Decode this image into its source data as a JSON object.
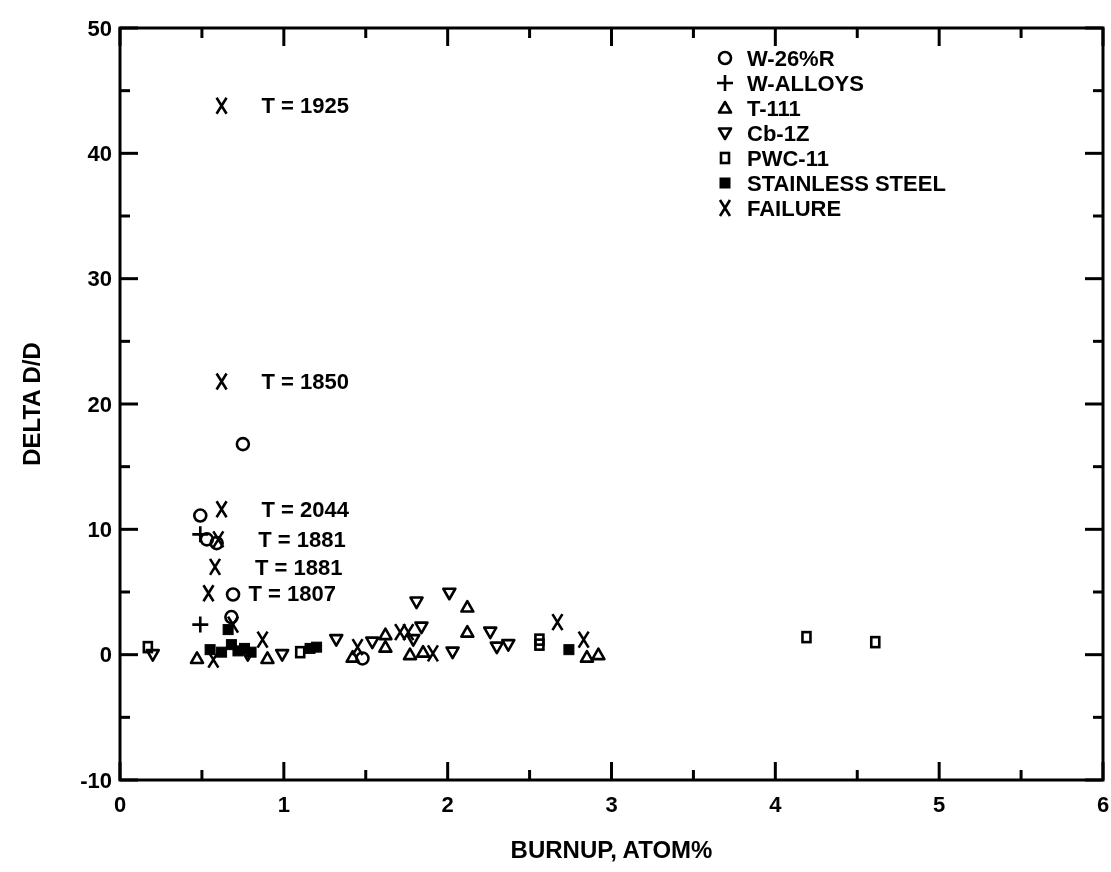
{
  "chart_data": {
    "type": "scatter",
    "xlabel": "BURNUP, ATOM%",
    "ylabel": "DELTA D/D",
    "xlim": [
      0,
      6
    ],
    "ylim": [
      -10,
      50
    ],
    "xticks": [
      0,
      {
        "value": 0.5,
        "label": null
      },
      1,
      {
        "value": 1.5,
        "label": null
      },
      2,
      {
        "value": 2.5,
        "label": null
      },
      3,
      {
        "value": 3.5,
        "label": null
      },
      4,
      {
        "value": 4.5,
        "label": null
      },
      5,
      {
        "value": 5.5,
        "label": null
      },
      6
    ],
    "yticks": [
      -10,
      {
        "value": -5,
        "label": null
      },
      0,
      {
        "value": 5,
        "label": null
      },
      10,
      {
        "value": 15,
        "label": null
      },
      20,
      {
        "value": 25,
        "label": null
      },
      30,
      {
        "value": 35,
        "label": null
      },
      40,
      {
        "value": 45,
        "label": null
      },
      50
    ],
    "grid": false,
    "legend": "top right",
    "series": [
      {
        "name": "W-26%R",
        "color": "#000000",
        "marker": "circle",
        "x": [
          0.49,
          0.53,
          0.59,
          0.75,
          0.69,
          0.68,
          1.48
        ],
        "values": [
          11.1,
          9.2,
          8.9,
          16.8,
          4.8,
          3.0,
          -0.3
        ]
      },
      {
        "name": "W-ALLOYS",
        "color": "#000000",
        "marker": "cross",
        "x": [
          0.49,
          0.49
        ],
        "values": [
          9.6,
          2.4
        ]
      },
      {
        "name": "T-111",
        "color": "#000000",
        "marker": "triangle",
        "x": [
          0.47,
          0.9,
          1.42,
          1.62,
          1.62,
          1.77,
          1.85,
          2.12,
          2.12,
          2.85,
          2.92
        ],
        "values": [
          -0.3,
          -0.3,
          -0.2,
          1.6,
          0.6,
          0,
          0.2,
          3.8,
          1.8,
          -0.2,
          0
        ]
      },
      {
        "name": "Cb-1Z",
        "color": "#000000",
        "marker": "triangle-down",
        "x": [
          0.2,
          0.78,
          0.99,
          1.32,
          1.54,
          1.79,
          1.81,
          1.84,
          2.01,
          2.03,
          2.26,
          2.3,
          2.37
        ],
        "values": [
          0,
          0,
          0,
          1.2,
          1.0,
          1.2,
          4.2,
          2.2,
          4.9,
          0.2,
          1.8,
          0.6,
          0.8
        ]
      },
      {
        "name": "PWC-11",
        "color": "#000000",
        "marker": "square",
        "x": [
          0.17,
          1.1,
          2.56,
          2.56,
          4.19,
          4.61
        ],
        "values": [
          0.6,
          0.2,
          0.8,
          1.2,
          1.4,
          1.0
        ]
      },
      {
        "name": "STAINLESS STEEL",
        "color": "#000000",
        "marker": "square-filled",
        "x": [
          0.55,
          0.62,
          0.66,
          0.68,
          0.72,
          0.76,
          0.8,
          1.16,
          1.2,
          2.74
        ],
        "values": [
          0.4,
          0.2,
          2.0,
          0.8,
          0.3,
          0.5,
          0.2,
          0.5,
          0.6,
          0.4
        ]
      },
      {
        "name": "FAILURE",
        "color": "#000000",
        "marker": "x",
        "x": [
          0.62,
          0.62,
          0.62,
          0.6,
          0.58,
          0.54,
          0.57,
          0.69,
          0.87,
          1.45,
          1.71,
          1.76,
          1.91,
          2.67,
          2.83
        ],
        "values": [
          43.8,
          21.8,
          11.6,
          9.2,
          7.0,
          4.9,
          -0.4,
          2.4,
          1.2,
          0.6,
          1.8,
          1.8,
          0.1,
          2.6,
          1.2
        ]
      }
    ],
    "annotations": [
      {
        "text": "T = 1925",
        "x": 0.62,
        "y": 43.8
      },
      {
        "text": "T = 1850",
        "x": 0.62,
        "y": 21.8
      },
      {
        "text": "T = 2044",
        "x": 0.62,
        "y": 11.6
      },
      {
        "text": "T = 1881",
        "x": 0.6,
        "y": 9.2
      },
      {
        "text": "T = 1881",
        "x": 0.58,
        "y": 7.0
      },
      {
        "text": "T = 1807",
        "x": 0.54,
        "y": 4.9
      }
    ]
  }
}
